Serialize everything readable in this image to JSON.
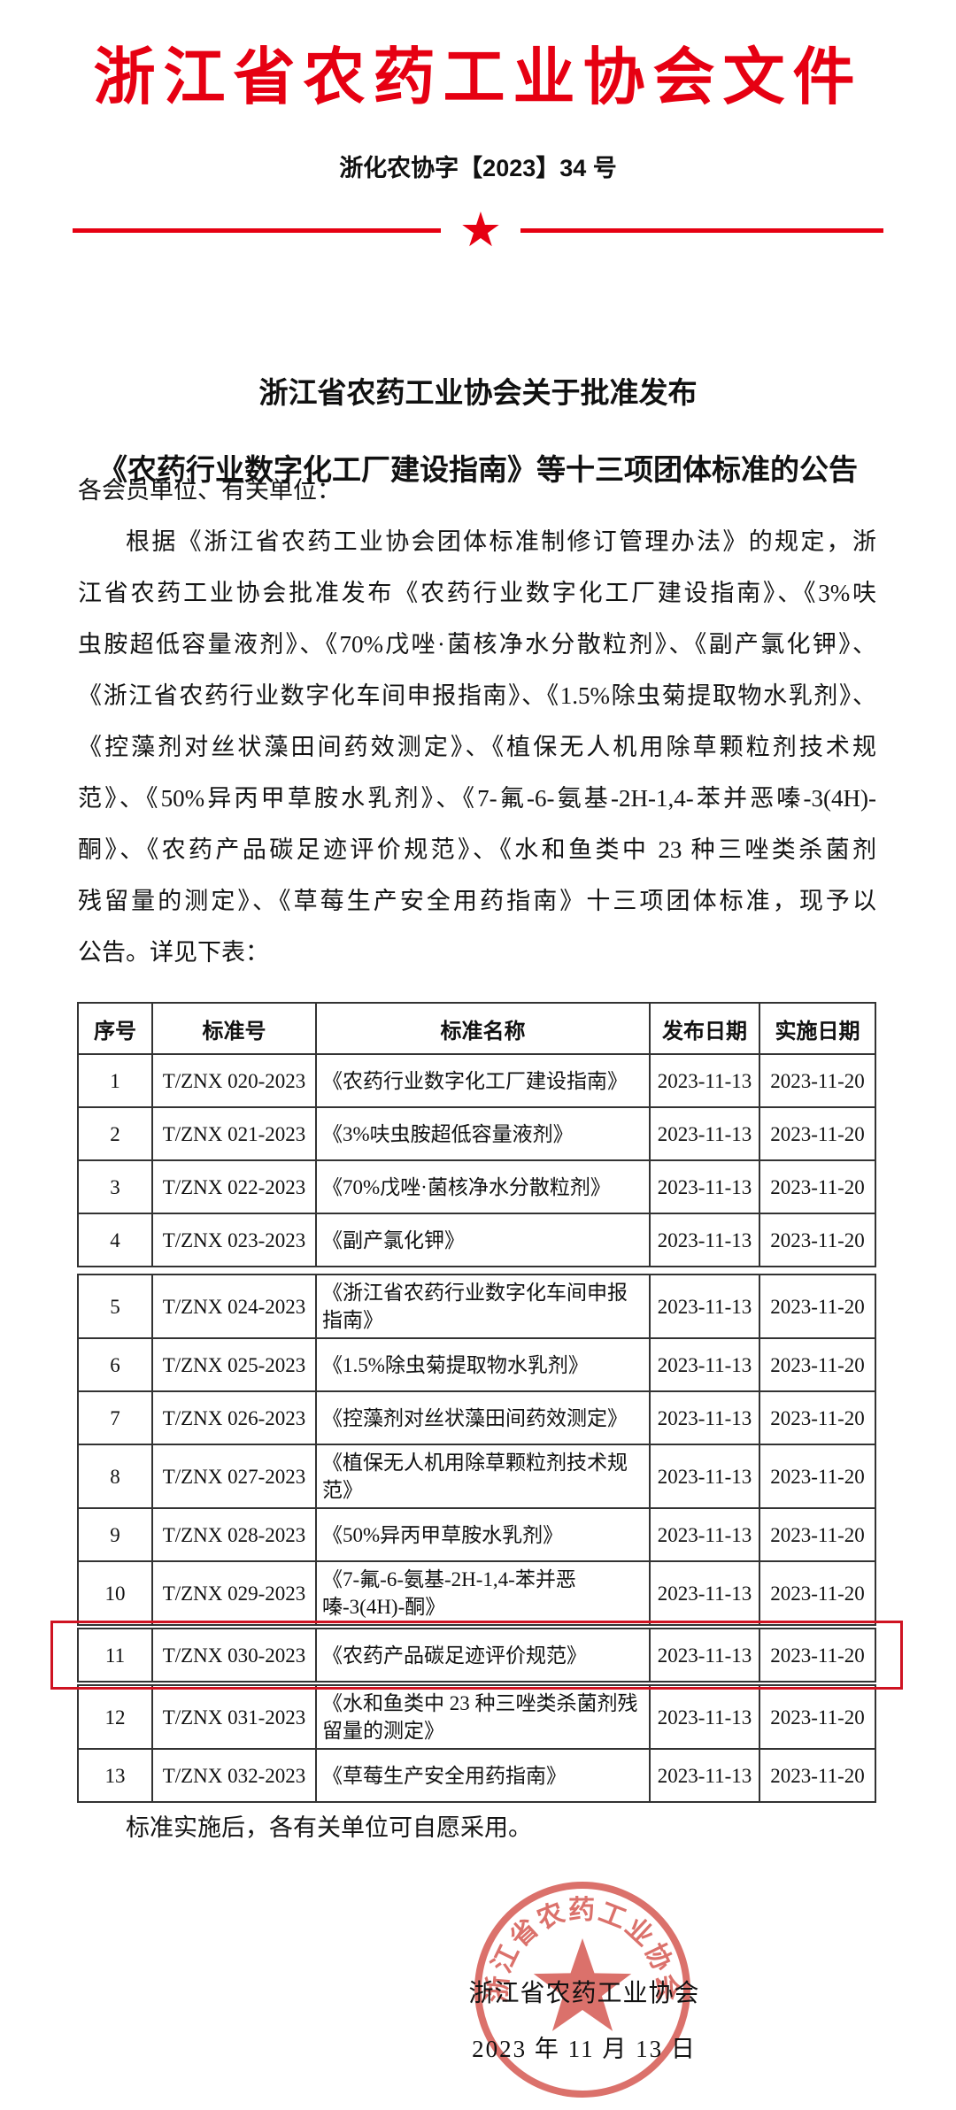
{
  "document": {
    "org_title": "浙江省农药工业协会文件",
    "doc_number": "浙化农协字【2023】34 号",
    "title_line1": "浙江省农药工业协会关于批准发布",
    "title_line2": "《农药行业数字化工厂建设指南》等十三项团体标准的公告",
    "salutation": "各会员单位、有关单位：",
    "paragraph_lines": [
      "根据《浙江省农药工业协会团体标准制修订管理办法》的规定，浙",
      "江省农药工业协会批准发布《农药行业数字化工厂建设指南》、《3%呋",
      "虫胺超低容量液剂》、《70%戊唑·菌核净水分散粒剂》、《副产氯化钾》、",
      "《浙江省农药行业数字化车间申报指南》、《1.5%除虫菊提取物水乳剂》、",
      "《控藻剂对丝状藻田间药效测定》、《植保无人机用除草颗粒剂技术规",
      "范》、《50%异丙甲草胺水乳剂》、《7-氟-6-氨基-2H-1,4-苯并恶嗪-3(4H)-",
      "酮》、《农药产品碳足迹评价规范》、《水和鱼类中 23 种三唑类杀菌剂",
      "残留量的测定》、《草莓生产安全用药指南》十三项团体标准，现予以",
      "公告。详见下表："
    ],
    "closing": "标准实施后，各有关单位可自愿采用。"
  },
  "table": {
    "headers": [
      "序号",
      "标准号",
      "标准名称",
      "发布日期",
      "实施日期"
    ],
    "rows": [
      {
        "seq": "1",
        "code": "T/ZNX 020-2023",
        "name": "《农药行业数字化工厂建设指南》",
        "publish_date": "2023-11-13",
        "implement_date": "2023-11-20"
      },
      {
        "seq": "2",
        "code": "T/ZNX 021-2023",
        "name": "《3%呋虫胺超低容量液剂》",
        "publish_date": "2023-11-13",
        "implement_date": "2023-11-20"
      },
      {
        "seq": "3",
        "code": "T/ZNX 022-2023",
        "name": "《70%戊唑·菌核净水分散粒剂》",
        "publish_date": "2023-11-13",
        "implement_date": "2023-11-20"
      },
      {
        "seq": "4",
        "code": "T/ZNX 023-2023",
        "name": "《副产氯化钾》",
        "publish_date": "2023-11-13",
        "implement_date": "2023-11-20"
      },
      {
        "seq": "5",
        "code": "T/ZNX 024-2023",
        "name": "《浙江省农药行业数字化车间申报指南》",
        "publish_date": "2023-11-13",
        "implement_date": "2023-11-20"
      },
      {
        "seq": "6",
        "code": "T/ZNX 025-2023",
        "name": "《1.5%除虫菊提取物水乳剂》",
        "publish_date": "2023-11-13",
        "implement_date": "2023-11-20"
      },
      {
        "seq": "7",
        "code": "T/ZNX 026-2023",
        "name": "《控藻剂对丝状藻田间药效测定》",
        "publish_date": "2023-11-13",
        "implement_date": "2023-11-20"
      },
      {
        "seq": "8",
        "code": "T/ZNX 027-2023",
        "name": "《植保无人机用除草颗粒剂技术规范》",
        "publish_date": "2023-11-13",
        "implement_date": "2023-11-20"
      },
      {
        "seq": "9",
        "code": "T/ZNX 028-2023",
        "name": "《50%异丙甲草胺水乳剂》",
        "publish_date": "2023-11-13",
        "implement_date": "2023-11-20"
      },
      {
        "seq": "10",
        "code": "T/ZNX 029-2023",
        "name": "《7-氟-6-氨基-2H-1,4-苯并恶嗪-3(4H)-酮》",
        "publish_date": "2023-11-13",
        "implement_date": "2023-11-20"
      },
      {
        "seq": "11",
        "code": "T/ZNX 030-2023",
        "name": "《农药产品碳足迹评价规范》",
        "publish_date": "2023-11-13",
        "implement_date": "2023-11-20"
      },
      {
        "seq": "12",
        "code": "T/ZNX 031-2023",
        "name": "《水和鱼类中 23 种三唑类杀菌剂残留量的测定》",
        "publish_date": "2023-11-13",
        "implement_date": "2023-11-20"
      },
      {
        "seq": "13",
        "code": "T/ZNX 032-2023",
        "name": "《草莓生产安全用药指南》",
        "publish_date": "2023-11-13",
        "implement_date": "2023-11-20"
      }
    ],
    "highlighted_seq": "11"
  },
  "footer": {
    "org_name": "浙江省农药工业协会",
    "date": "2023 年 11 月 13 日",
    "stamp_ring_text": "浙江省农药工业协会"
  },
  "colors": {
    "accent_red": "#e60012",
    "highlight_box_red": "#cf1322",
    "stamp_red": "#d4534b",
    "table_border": "#333333"
  }
}
